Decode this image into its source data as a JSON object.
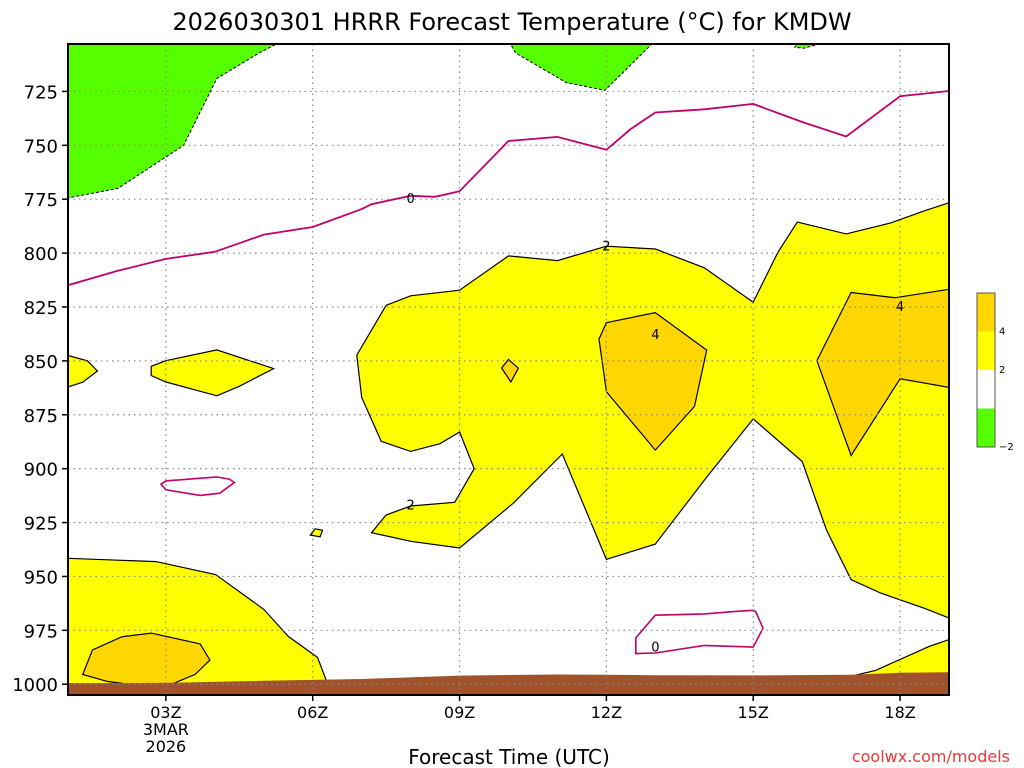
{
  "chart_data": {
    "type": "heatmap",
    "title": "2026030301 HRRR Forecast Temperature (°C) for KMDW",
    "xlabel": "Forecast Time (UTC)",
    "ylabel": "",
    "credit": "coolwx.com/models",
    "x_unit": "hours",
    "y_unit": "hPa",
    "xlim": [
      1,
      19
    ],
    "ylim": [
      1005,
      703
    ],
    "xticks": [
      {
        "x": 3,
        "lines": [
          "03Z",
          "3MAR",
          "2026"
        ]
      },
      {
        "x": 6,
        "lines": [
          "06Z"
        ]
      },
      {
        "x": 9,
        "lines": [
          "09Z"
        ]
      },
      {
        "x": 12,
        "lines": [
          "12Z"
        ]
      },
      {
        "x": 15,
        "lines": [
          "15Z"
        ]
      },
      {
        "x": 18,
        "lines": [
          "18Z"
        ]
      }
    ],
    "yticks": [
      725,
      750,
      775,
      800,
      825,
      850,
      875,
      900,
      925,
      950,
      975,
      1000
    ],
    "grid": true,
    "colorbar": {
      "levels": [
        {
          "label": "4",
          "color": "#ffd700"
        },
        {
          "label": "2",
          "color": "#ffff00"
        },
        {
          "label": "",
          "color": "#ffffff"
        },
        {
          "label": "−2",
          "color": "#55ff00"
        }
      ]
    },
    "regions": [
      {
        "name": "below -2C upper left",
        "color": "#55ff00",
        "stroke": "dashed",
        "filled": true,
        "points": [
          [
            1,
            703
          ],
          [
            5.26,
            703
          ],
          [
            4.94,
            706.7
          ],
          [
            4.04,
            719
          ],
          [
            3.36,
            750.1
          ],
          [
            2.02,
            770
          ],
          [
            1,
            774.4
          ]
        ]
      },
      {
        "name": "below -2C upper middle",
        "color": "#55ff00",
        "stroke": "dashed",
        "filled": true,
        "points": [
          [
            5.08,
            703
          ],
          [
            10.04,
            703
          ],
          [
            10.14,
            707.1
          ],
          [
            11.18,
            720.9
          ],
          [
            11.97,
            724.5
          ],
          [
            12.93,
            703
          ]
        ]
      },
      {
        "name": "below -2C upper right",
        "color": "#55ff00",
        "stroke": "dashed",
        "filled": true,
        "points": [
          [
            15.91,
            703
          ],
          [
            16.34,
            703
          ],
          [
            16.03,
            705
          ],
          [
            15.85,
            704.5
          ]
        ]
      },
      {
        "name": "above 2C main",
        "color": "#ffff00",
        "stroke": "solid",
        "filled": true,
        "points": [
          [
            8,
            819.8
          ],
          [
            9,
            817.2
          ],
          [
            10,
            801.3
          ],
          [
            11,
            803.5
          ],
          [
            12,
            796.8
          ],
          [
            13,
            798.1
          ],
          [
            14,
            806.8
          ],
          [
            15,
            822.8
          ],
          [
            15.5,
            799.8
          ],
          [
            15.9,
            785.6
          ],
          [
            16.9,
            791.1
          ],
          [
            17.8,
            786.1
          ],
          [
            18.5,
            780.4
          ],
          [
            19,
            776.6
          ],
          [
            19,
            969.3
          ],
          [
            18.5,
            964.8
          ],
          [
            17.6,
            957.7
          ],
          [
            17,
            951.5
          ],
          [
            16.5,
            928.6
          ],
          [
            16,
            896.7
          ],
          [
            15,
            876.9
          ],
          [
            14,
            905.4
          ],
          [
            13,
            935
          ],
          [
            12,
            942.1
          ],
          [
            11.1,
            893.2
          ],
          [
            10.1,
            916
          ],
          [
            9,
            936.8
          ],
          [
            8,
            933.7
          ],
          [
            7.2,
            929.7
          ],
          [
            7.5,
            921.5
          ],
          [
            8,
            917.3
          ],
          [
            8.9,
            915.6
          ],
          [
            9.3,
            900
          ],
          [
            9,
            883
          ],
          [
            8.6,
            888.4
          ],
          [
            8,
            892
          ],
          [
            7.4,
            887.3
          ],
          [
            7,
            867
          ],
          [
            6.9,
            847.3
          ],
          [
            7.5,
            824.2
          ]
        ]
      },
      {
        "name": "above 4C left",
        "color": "#ffd700",
        "stroke": "solid",
        "filled": true,
        "points": [
          [
            12,
            832.3
          ],
          [
            13,
            827.6
          ],
          [
            14.05,
            845
          ],
          [
            13.8,
            871.1
          ],
          [
            13,
            891.4
          ],
          [
            12,
            864.3
          ],
          [
            11.85,
            839.9
          ]
        ]
      },
      {
        "name": "above 4C right",
        "color": "#ffd700",
        "stroke": "solid",
        "filled": true,
        "points": [
          [
            17,
            818.3
          ],
          [
            17.9,
            820.7
          ],
          [
            19,
            816.8
          ],
          [
            19,
            862.3
          ],
          [
            18,
            858.3
          ],
          [
            17,
            893.9
          ],
          [
            16.3,
            849.9
          ]
        ]
      },
      {
        "name": "above 2C bottom left",
        "color": "#ffff00",
        "stroke": "solid",
        "filled": true,
        "points": [
          [
            1,
            1003
          ],
          [
            1,
            941.6
          ],
          [
            2.8,
            943.1
          ],
          [
            4.02,
            949.2
          ],
          [
            5,
            965.3
          ],
          [
            5.5,
            977.8
          ],
          [
            6.1,
            987.6
          ],
          [
            6.3,
            999.6
          ],
          [
            5,
            1003
          ]
        ]
      },
      {
        "name": "above 4C bottom left",
        "color": "#ffd700",
        "stroke": "solid",
        "filled": true,
        "points": [
          [
            1.3,
            995.5
          ],
          [
            1.5,
            984.1
          ],
          [
            2.1,
            978
          ],
          [
            2.7,
            976.3
          ],
          [
            3.7,
            981.3
          ],
          [
            3.9,
            988.8
          ],
          [
            3.6,
            995.4
          ],
          [
            3,
            1001.1
          ],
          [
            2.5,
            1000.8
          ],
          [
            1.8,
            998.7
          ]
        ]
      },
      {
        "name": "above 2C bottom right",
        "color": "#ffff00",
        "stroke": "solid",
        "filled": true,
        "points": [
          [
            16.3,
            1000
          ],
          [
            17.5,
            993.6
          ],
          [
            18.6,
            982.4
          ],
          [
            19,
            979.3
          ],
          [
            19,
            1003
          ],
          [
            16.3,
            1003
          ]
        ]
      },
      {
        "name": "above 4C bottom right",
        "color": "#ffd700",
        "stroke": "solid",
        "filled": true,
        "points": [
          [
            18.7,
            1000.6
          ],
          [
            19,
            996.7
          ],
          [
            19,
            1000.6
          ]
        ]
      },
      {
        "name": "above 2C blob left",
        "color": "#ffff00",
        "stroke": "solid",
        "filled": true,
        "points": [
          [
            1,
            847.5
          ],
          [
            1.4,
            850
          ],
          [
            1.6,
            854.7
          ],
          [
            1.3,
            859.9
          ],
          [
            1,
            862.1
          ]
        ]
      },
      {
        "name": "above 2C blob middle",
        "color": "#ffff00",
        "stroke": "solid",
        "filled": true,
        "points": [
          [
            2.7,
            852.5
          ],
          [
            3,
            849.9
          ],
          [
            4.04,
            844.9
          ],
          [
            5.2,
            853.6
          ],
          [
            4.5,
            861.8
          ],
          [
            4.04,
            866.2
          ],
          [
            3,
            859.8
          ],
          [
            2.7,
            856.8
          ]
        ]
      },
      {
        "name": "above 2C blob tiny",
        "color": "#ffff00",
        "stroke": "solid",
        "filled": true,
        "points": [
          [
            6.05,
            927.9
          ],
          [
            6.2,
            928.6
          ],
          [
            6.15,
            931.6
          ],
          [
            5.95,
            930.8
          ]
        ]
      },
      {
        "name": "above 4C dot",
        "color": "#ffd700",
        "stroke": "solid",
        "filled": true,
        "points": [
          [
            10,
            849.3
          ],
          [
            10.2,
            853.4
          ],
          [
            10.05,
            859.8
          ],
          [
            9.86,
            853.3
          ]
        ]
      },
      {
        "name": "below 0C bottom right",
        "color": "#ffffff",
        "stroke": "magenta",
        "filled": false,
        "points": [
          [
            13,
            985.5
          ],
          [
            14,
            982
          ],
          [
            15,
            982.8
          ],
          [
            15.2,
            974
          ],
          [
            15.05,
            966.3
          ],
          [
            15,
            965.7
          ],
          [
            14.6,
            966.3
          ],
          [
            14,
            967.4
          ],
          [
            13,
            968
          ],
          [
            12.6,
            978.5
          ],
          [
            12.6,
            985.8
          ],
          [
            13,
            985.5
          ]
        ]
      },
      {
        "name": "below 0C mid left",
        "color": "#ffffff",
        "stroke": "magenta",
        "filled": false,
        "points": [
          [
            2.9,
            907.2
          ],
          [
            3,
            905.7
          ],
          [
            4.04,
            903.8
          ],
          [
            4.3,
            904.9
          ],
          [
            4.4,
            906.4
          ],
          [
            4.1,
            911.4
          ],
          [
            3.7,
            912.4
          ],
          [
            3,
            909.8
          ],
          [
            2.9,
            907.2
          ]
        ]
      }
    ],
    "contour_lines": [
      {
        "name": "0C line upper",
        "color": "#c0006b",
        "points": [
          [
            1,
            814.9
          ],
          [
            2,
            808.3
          ],
          [
            3,
            802.7
          ],
          [
            4,
            799.4
          ],
          [
            5,
            791.4
          ],
          [
            6,
            787.9
          ],
          [
            7,
            779.6
          ],
          [
            7.2,
            777.3
          ],
          [
            8,
            773.4
          ],
          [
            8.5,
            773.9
          ],
          [
            9,
            771.3
          ],
          [
            10,
            748
          ],
          [
            11,
            746.1
          ],
          [
            12,
            752.1
          ],
          [
            12.5,
            742.4
          ],
          [
            13,
            734.8
          ],
          [
            14,
            733.3
          ],
          [
            15,
            730.8
          ],
          [
            16,
            739.2
          ],
          [
            16.9,
            745.9
          ],
          [
            18,
            727.2
          ],
          [
            19,
            724.8
          ]
        ]
      }
    ],
    "contour_labels": [
      {
        "text": "0",
        "x": 8,
        "y": 775
      },
      {
        "text": "2",
        "x": 12,
        "y": 797
      },
      {
        "text": "4",
        "x": 13,
        "y": 838
      },
      {
        "text": "4",
        "x": 18,
        "y": 825
      },
      {
        "text": "2",
        "x": 8,
        "y": 917
      },
      {
        "text": "0",
        "x": 13,
        "y": 983
      }
    ],
    "terrain": {
      "color": "#a0522d",
      "points": [
        [
          1,
          999.5
        ],
        [
          3,
          999.4
        ],
        [
          5,
          998.4
        ],
        [
          7,
          997.6
        ],
        [
          9,
          996
        ],
        [
          11,
          995.5
        ],
        [
          12,
          995.6
        ],
        [
          13,
          995.8
        ],
        [
          15,
          995.9
        ],
        [
          17,
          995.6
        ],
        [
          18,
          994.7
        ],
        [
          19,
          994.4
        ],
        [
          19,
          1005
        ],
        [
          1,
          1005
        ]
      ]
    }
  }
}
